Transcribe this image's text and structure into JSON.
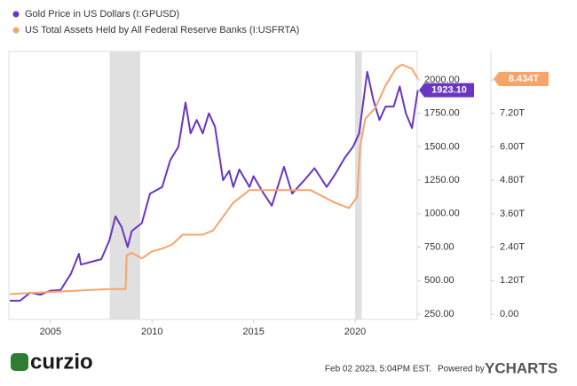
{
  "chart_data": {
    "type": "line",
    "series": [
      {
        "name": "Gold Price in US Dollars (I:GPUSD)",
        "color": "#6a35c4",
        "axis": "y",
        "x": [
          2003.0,
          2003.5,
          2004.0,
          2004.5,
          2005.0,
          2005.5,
          2006.0,
          2006.4,
          2006.5,
          2007.0,
          2007.5,
          2007.9,
          2008.2,
          2008.5,
          2008.8,
          2009.0,
          2009.5,
          2009.9,
          2010.5,
          2010.9,
          2011.3,
          2011.65,
          2011.9,
          2012.2,
          2012.5,
          2012.8,
          2013.1,
          2013.5,
          2013.8,
          2014.0,
          2014.3,
          2014.8,
          2015.0,
          2015.5,
          2015.9,
          2016.5,
          2016.9,
          2017.5,
          2018.0,
          2018.6,
          2019.0,
          2019.5,
          2019.9,
          2020.2,
          2020.6,
          2020.9,
          2021.2,
          2021.5,
          2021.9,
          2022.2,
          2022.5,
          2022.8,
          2023.09
        ],
        "values": [
          350,
          350,
          410,
          395,
          425,
          430,
          550,
          700,
          620,
          640,
          660,
          800,
          980,
          900,
          750,
          870,
          930,
          1150,
          1200,
          1400,
          1500,
          1830,
          1600,
          1700,
          1600,
          1750,
          1650,
          1250,
          1320,
          1200,
          1330,
          1200,
          1280,
          1150,
          1060,
          1350,
          1150,
          1250,
          1340,
          1200,
          1290,
          1420,
          1500,
          1600,
          2060,
          1850,
          1700,
          1800,
          1800,
          1950,
          1750,
          1640,
          1923.1
        ],
        "last_value": 1923.1,
        "last_label": "1923.10"
      },
      {
        "name": "US Total Assets Held by All Federal Reserve Banks (I:USFRTA)",
        "color": "#f7a46b",
        "axis": "y2",
        "x": [
          2003.0,
          2007.9,
          2008.7,
          2008.75,
          2009.0,
          2009.5,
          2010.0,
          2010.5,
          2011.0,
          2011.5,
          2012.5,
          2013.0,
          2014.0,
          2014.8,
          2017.8,
          2019.0,
          2019.7,
          2020.1,
          2020.25,
          2020.5,
          2021.0,
          2021.5,
          2022.0,
          2022.3,
          2022.8,
          2023.09
        ],
        "values": [
          0.72,
          0.9,
          0.9,
          2.1,
          2.2,
          2.0,
          2.25,
          2.35,
          2.5,
          2.85,
          2.85,
          3.0,
          4.0,
          4.45,
          4.45,
          4.0,
          3.8,
          4.2,
          6.0,
          7.0,
          7.4,
          8.2,
          8.8,
          8.95,
          8.8,
          8.434
        ],
        "last_value": 8.434,
        "last_label": "8.434T"
      }
    ],
    "xlim": [
      2002.95,
      2023.06
    ],
    "xticks": [
      2005,
      2010,
      2015,
      2020
    ],
    "ylim": [
      210,
      2212
    ],
    "yticks": [
      {
        "value": 250,
        "label": "250.00"
      },
      {
        "value": 500,
        "label": "500.00"
      },
      {
        "value": 750,
        "label": "750.00"
      },
      {
        "value": 1000,
        "label": "1000.00"
      },
      {
        "value": 1250,
        "label": "1250.00"
      },
      {
        "value": 1500,
        "label": "1500.00"
      },
      {
        "value": 1750,
        "label": "1750.00"
      },
      {
        "value": 2000,
        "label": "2000.00"
      }
    ],
    "y2lim": [
      -0.19,
      9.42
    ],
    "y2ticks": [
      {
        "value": 0,
        "label": "0.00"
      },
      {
        "value": 1.2,
        "label": "1.20T"
      },
      {
        "value": 2.4,
        "label": "2.40T"
      },
      {
        "value": 3.6,
        "label": "3.60T"
      },
      {
        "value": 4.8,
        "label": "4.80T"
      },
      {
        "value": 6,
        "label": "6.00T"
      },
      {
        "value": 7.2,
        "label": "7.20T"
      },
      {
        "value": 8.4,
        "label": "8.40T"
      }
    ],
    "shaded_ranges": [
      [
        2007.92,
        2009.42
      ],
      [
        2020.0,
        2020.33
      ]
    ],
    "brand": "curzio",
    "timestamp": "Feb 02 2023, 5:04PM EST.",
    "powered_by": "Powered by",
    "provider": "YCHARTS"
  }
}
